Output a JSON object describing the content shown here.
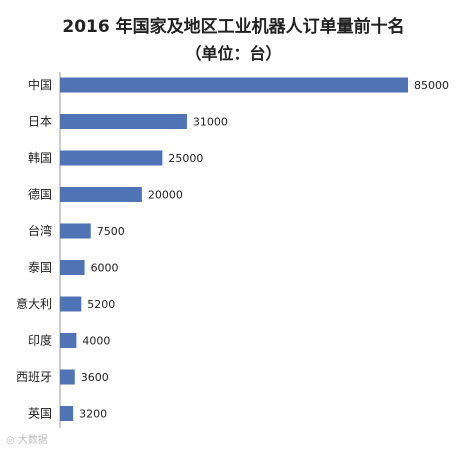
{
  "chart_data": {
    "type": "bar",
    "orientation": "horizontal",
    "title": "2016 年国家及地区工业机器人订单量前十名",
    "subtitle": "（单位：台）",
    "categories": [
      "中国",
      "日本",
      "韩国",
      "德国",
      "台湾",
      "泰国",
      "意大利",
      "印度",
      "西班牙",
      "英国"
    ],
    "values": [
      85000,
      31000,
      25000,
      20000,
      7500,
      6000,
      5200,
      4000,
      3600,
      3200
    ],
    "value_labels": [
      "85000",
      "31000",
      "25000",
      "20000",
      "7500",
      "6000",
      "5200",
      "4000",
      "3600",
      "3200"
    ],
    "bar_color": "#4f73b4",
    "xlim": [
      0,
      85000
    ],
    "grid": false,
    "legend": "none"
  },
  "watermark": {
    "icon": "weibo-icon",
    "text": "大数据"
  }
}
